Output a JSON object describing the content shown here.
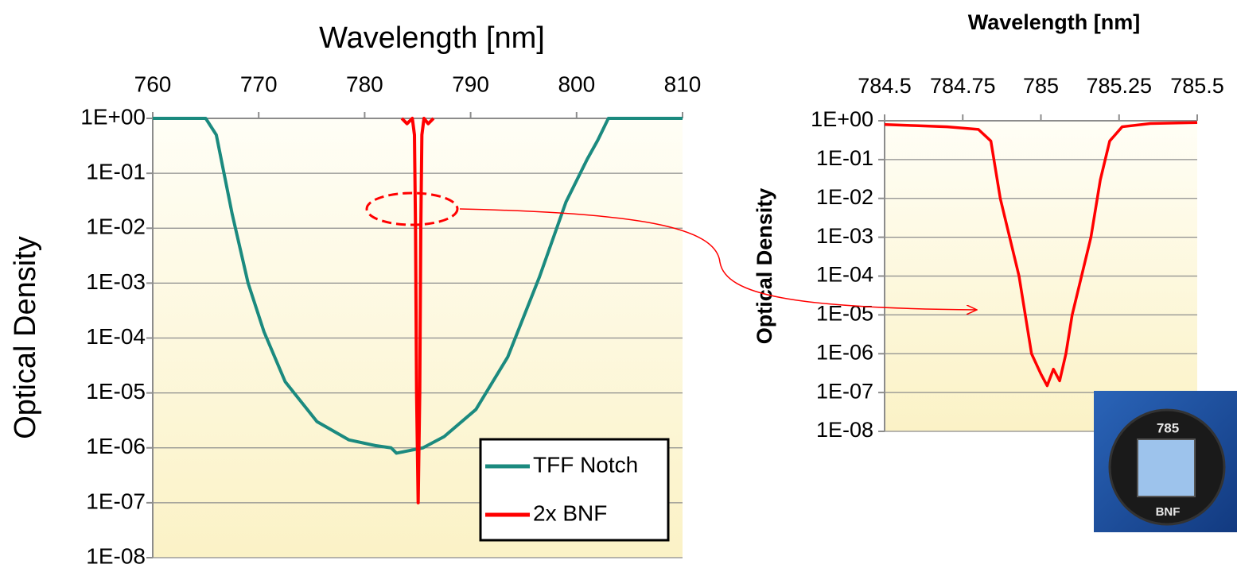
{
  "chart_data": [
    {
      "type": "line",
      "title": "Wavelength [nm]",
      "y_label": "Optical Density",
      "ylog": true,
      "grid": true,
      "legend": "lower right",
      "xlim": [
        760,
        810
      ],
      "xticks": [
        760,
        770,
        780,
        790,
        800,
        810
      ],
      "ylim": [
        1e-08,
        1
      ],
      "yticks": [
        {
          "value": 1,
          "label": "1E+00"
        },
        {
          "value": 0.1,
          "label": "1E-01"
        },
        {
          "value": 0.01,
          "label": "1E-02"
        },
        {
          "value": 0.001,
          "label": "1E-03"
        },
        {
          "value": 0.0001,
          "label": "1E-04"
        },
        {
          "value": 1e-05,
          "label": "1E-05"
        },
        {
          "value": 1e-06,
          "label": "1E-06"
        },
        {
          "value": 1e-07,
          "label": "1E-07"
        },
        {
          "value": 1e-08,
          "label": "1E-08"
        }
      ],
      "series": [
        {
          "name": "TFF Notch",
          "color": "#1b8a7f",
          "x": [
            760,
            765,
            766,
            767.5,
            769,
            770.5,
            772.5,
            775.5,
            778.5,
            781,
            782.5,
            783,
            785.5,
            787.5,
            790.5,
            793.5,
            796.5,
            799,
            801,
            802,
            803,
            810
          ],
          "values": [
            1,
            1,
            0.5,
            0.018,
            0.001,
            0.00013,
            1.6e-05,
            3e-06,
            1.4e-06,
            1.1e-06,
            1e-06,
            8e-07,
            1e-06,
            1.6e-06,
            5e-06,
            4.5e-05,
            0.0013,
            0.03,
            0.18,
            0.4,
            1,
            1
          ]
        },
        {
          "name": "2x BNF",
          "color": "#ff0000",
          "x": [
            783.5,
            784,
            784.5,
            784.7,
            784.8,
            784.9,
            785.05,
            785.2,
            785.3,
            785.4,
            785.6,
            786,
            786.5
          ],
          "values": [
            1,
            0.8,
            1,
            0.5,
            0.01,
            1e-05,
            1e-07,
            1e-05,
            0.01,
            0.5,
            1,
            0.8,
            1
          ]
        }
      ]
    },
    {
      "type": "line",
      "title": "Wavelength [nm]",
      "y_label": "Optical Density",
      "ylog": true,
      "grid": true,
      "xlim": [
        784.5,
        785.5
      ],
      "xticks": [
        784.5,
        784.75,
        785,
        785.25,
        785.5
      ],
      "ylim": [
        1e-08,
        1
      ],
      "yticks": [
        {
          "value": 1,
          "label": "1E+00"
        },
        {
          "value": 0.1,
          "label": "1E-01"
        },
        {
          "value": 0.01,
          "label": "1E-02"
        },
        {
          "value": 0.001,
          "label": "1E-03"
        },
        {
          "value": 0.0001,
          "label": "1E-04"
        },
        {
          "value": 1e-05,
          "label": "1E-05"
        },
        {
          "value": 1e-06,
          "label": "1E-06"
        },
        {
          "value": 1e-07,
          "label": "1E-07"
        },
        {
          "value": 1e-08,
          "label": "1E-08"
        }
      ],
      "series": [
        {
          "color": "#ff0000",
          "x": [
            784.5,
            784.6,
            784.7,
            784.8,
            784.84,
            784.87,
            784.9,
            784.93,
            784.95,
            784.97,
            785.0,
            785.02,
            785.04,
            785.06,
            785.08,
            785.1,
            785.13,
            785.16,
            785.19,
            785.22,
            785.26,
            785.35,
            785.5
          ],
          "values": [
            0.8,
            0.75,
            0.7,
            0.6,
            0.3,
            0.01,
            0.001,
            0.0001,
            1e-05,
            1e-06,
            3e-07,
            1.5e-07,
            4e-07,
            2e-07,
            1e-06,
            1e-05,
            0.0001,
            0.001,
            0.03,
            0.3,
            0.7,
            0.85,
            0.9
          ]
        }
      ]
    }
  ],
  "inset": {
    "labels": [
      "785",
      "BNF"
    ]
  }
}
